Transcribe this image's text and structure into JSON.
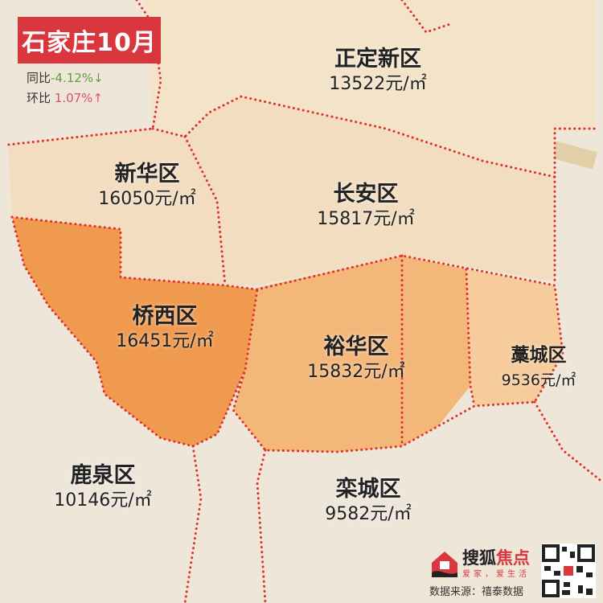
{
  "header": {
    "title": "石家庄10月",
    "yoy_label": "同比",
    "yoy_value": "-4.12%",
    "yoy_arrow": "↓",
    "mom_label": "环比",
    "mom_value": " 1.07%",
    "mom_arrow": "↑"
  },
  "districts": [
    {
      "name": "正定新区",
      "price": "13522元/㎡",
      "fill": "#f3e3c8"
    },
    {
      "name": "新华区",
      "price": "16050元/㎡",
      "fill": "#f2ddc0"
    },
    {
      "name": "长安区",
      "price": "15817元/㎡",
      "fill": "#f2ddc0"
    },
    {
      "name": "桥西区",
      "price": "16451元/㎡",
      "fill": "#ef9a4f"
    },
    {
      "name": "裕华区",
      "price": "15832元/㎡",
      "fill": "#f4b77a"
    },
    {
      "name": "藁城区",
      "price": "9536元/㎡",
      "fill": "#f7cc9c"
    },
    {
      "name": "鹿泉区",
      "price": "10146元/㎡",
      "fill": "#efe6da"
    },
    {
      "name": "栾城区",
      "price": "9582元/㎡",
      "fill": "#efe6da"
    }
  ],
  "colors": {
    "boundary": "#e0302b",
    "title_bg": "#d9363e",
    "yoy": "#5aa13a",
    "mom": "#d9536a"
  },
  "footer": {
    "brand_main": "搜狐",
    "brand_accent": "焦点",
    "slogan": "爱家，爱生活",
    "source": "数据来源：禧泰数据"
  }
}
